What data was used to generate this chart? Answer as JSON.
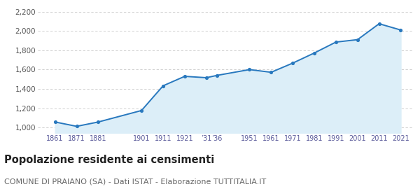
{
  "years": [
    1861,
    1871,
    1881,
    1901,
    1911,
    1921,
    1931,
    1936,
    1951,
    1961,
    1971,
    1981,
    1991,
    2001,
    2011,
    2021
  ],
  "population": [
    1057,
    1012,
    1057,
    1176,
    1432,
    1530,
    1516,
    1540,
    1600,
    1572,
    1667,
    1772,
    1885,
    1910,
    2075,
    2010
  ],
  "ylim": [
    940,
    2260
  ],
  "xlim": [
    1853,
    2027
  ],
  "yticks": [
    1000,
    1200,
    1400,
    1600,
    1800,
    2000,
    2200
  ],
  "xtick_positions": [
    1861,
    1871,
    1881,
    1901,
    1911,
    1921,
    1931,
    1936,
    1951,
    1961,
    1971,
    1981,
    1991,
    2001,
    2011,
    2021
  ],
  "xtick_labels": [
    "1861",
    "1871",
    "1881",
    "1901",
    "1911",
    "1921",
    "’31",
    "’36",
    "1951",
    "1961",
    "1971",
    "1981",
    "1991",
    "2001",
    "2011",
    "2021"
  ],
  "line_color": "#2878be",
  "fill_color": "#dceef8",
  "marker_color": "#2878be",
  "bg_color": "#ffffff",
  "grid_color": "#c8c8c8",
  "title": "Popolazione residente ai censimenti",
  "subtitle": "COMUNE DI PRAIANO (SA) - Dati ISTAT - Elaborazione TUTTITALIA.IT",
  "title_fontsize": 10.5,
  "subtitle_fontsize": 8
}
